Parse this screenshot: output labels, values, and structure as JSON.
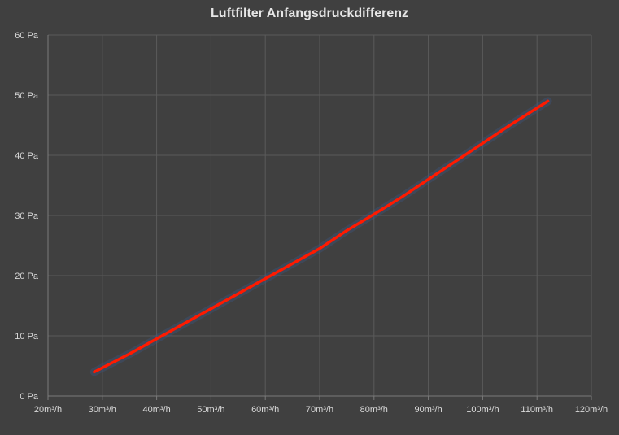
{
  "chart_data": {
    "type": "line",
    "title": "Luftfilter Anfangsdruckdifferenz",
    "xlabel": "",
    "ylabel": "",
    "x_ticks": [
      "20m³/h",
      "30m³/h",
      "40m³/h",
      "50m³/h",
      "60m³/h",
      "70m³/h",
      "80m³/h",
      "90m³/h",
      "100m³/h",
      "110m³/h",
      "120m³/h"
    ],
    "y_ticks": [
      "0 Pa",
      "10 Pa",
      "20 Pa",
      "30 Pa",
      "40 Pa",
      "50 Pa",
      "60 Pa"
    ],
    "xlim": [
      20,
      120
    ],
    "ylim": [
      0,
      60
    ],
    "grid": true,
    "series": [
      {
        "color": "#ff1a00",
        "x": [
          28.5,
          35,
          40,
          45,
          50,
          55,
          60,
          65,
          70,
          75,
          80,
          85,
          90,
          95,
          100,
          105,
          112
        ],
        "y": [
          4,
          7,
          9.5,
          12,
          14.5,
          17,
          19.5,
          22,
          24.5,
          27.5,
          30.2,
          33,
          36,
          39,
          42,
          45,
          49
        ]
      }
    ],
    "colors": {
      "background": "#404040",
      "grid": "#5a5a5a",
      "axis": "#7a7a7a",
      "text": "#d9d9d9",
      "title": "#e6e6e6",
      "line": "#ff1a00",
      "glow": "#3d5a8a"
    }
  }
}
